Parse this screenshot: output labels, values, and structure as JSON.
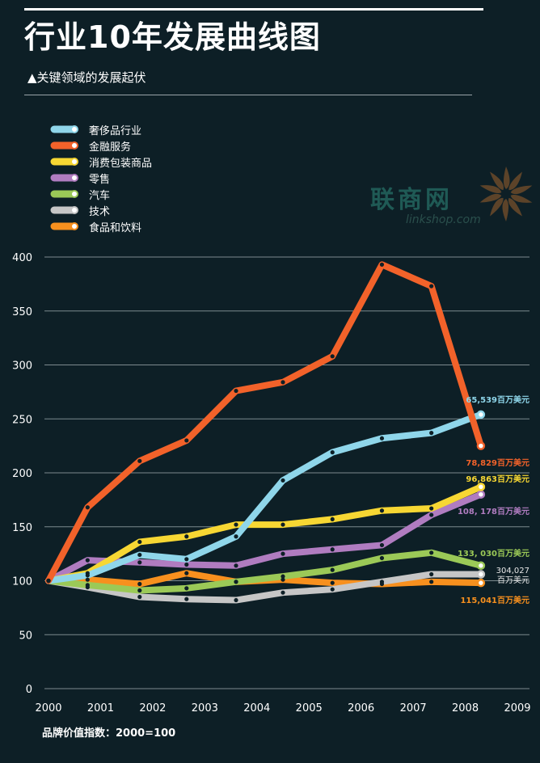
{
  "header": {
    "title": "行业10年发展曲线图",
    "subtitle": "▲关键领域的发展起伏"
  },
  "watermark": {
    "brand": "联商网",
    "tagline": "linkshop.com"
  },
  "footer": {
    "note": "品牌价值指数：2000=100"
  },
  "chart_data": {
    "type": "line",
    "xlabel": "",
    "ylabel": "",
    "x_ticks": [
      "2000",
      "2001",
      "2002",
      "2003",
      "2004",
      "2005",
      "2006",
      "2007",
      "2008",
      "2009"
    ],
    "y_ticks": [
      0,
      50,
      100,
      150,
      200,
      250,
      300,
      350,
      400
    ],
    "xlim": [
      2000,
      2009
    ],
    "ylim": [
      0,
      400
    ],
    "grid": true,
    "legend_position": "top-left",
    "series": [
      {
        "name": "奢侈品行业",
        "color": "#8fd6ea",
        "x": [
          2000,
          2000.75,
          2001.75,
          2002.65,
          2003.6,
          2004.5,
          2005.45,
          2006.4,
          2007.35,
          2008.3
        ],
        "y": [
          100,
          105,
          124,
          120,
          141,
          193,
          219,
          232,
          237,
          254
        ],
        "end_label": "65,539百万美元"
      },
      {
        "name": "金融服务",
        "color": "#f2622a",
        "x": [
          2000,
          2000.75,
          2001.75,
          2002.65,
          2003.6,
          2004.5,
          2005.45,
          2006.4,
          2007.35,
          2008.3
        ],
        "y": [
          100,
          168,
          211,
          230,
          276,
          284,
          308,
          393,
          373,
          225
        ],
        "end_label": "78,829百万美元"
      },
      {
        "name": "消费包装商品",
        "color": "#f7d733",
        "x": [
          2000,
          2000.75,
          2001.75,
          2002.65,
          2003.6,
          2004.5,
          2005.45,
          2006.4,
          2007.35,
          2008.3
        ],
        "y": [
          100,
          107,
          136,
          141,
          152,
          152,
          157,
          165,
          167,
          187
        ],
        "end_label": "96,863百万美元"
      },
      {
        "name": "零售",
        "color": "#b07cc0",
        "x": [
          2000,
          2000.75,
          2001.75,
          2002.65,
          2003.6,
          2004.5,
          2005.45,
          2006.4,
          2007.35,
          2008.3
        ],
        "y": [
          100,
          119,
          117,
          115,
          114,
          125,
          129,
          133,
          161,
          180
        ],
        "end_label": "108, 178百万美元"
      },
      {
        "name": "汽车",
        "color": "#9bc957",
        "x": [
          2000,
          2000.75,
          2001.75,
          2002.65,
          2003.6,
          2004.5,
          2005.45,
          2006.4,
          2007.35,
          2008.3
        ],
        "y": [
          100,
          96,
          91,
          93,
          99,
          104,
          110,
          121,
          126,
          114
        ],
        "end_label": "133, 030百万美元"
      },
      {
        "name": "技术",
        "color": "#c6c6c6",
        "x": [
          2000,
          2000.75,
          2001.75,
          2002.65,
          2003.6,
          2004.5,
          2005.45,
          2006.4,
          2007.35,
          2008.3
        ],
        "y": [
          100,
          94,
          85,
          83,
          82,
          89,
          92,
          99,
          106,
          106
        ],
        "end_label": "304,027 百万美元"
      },
      {
        "name": "食品和饮料",
        "color": "#f7901e",
        "x": [
          2000,
          2000.75,
          2001.75,
          2002.65,
          2003.6,
          2004.5,
          2005.45,
          2006.4,
          2007.35,
          2008.3
        ],
        "y": [
          100,
          101,
          97,
          107,
          99,
          101,
          98,
          97,
          99,
          98
        ],
        "end_label": "115,041百万美元"
      }
    ]
  }
}
